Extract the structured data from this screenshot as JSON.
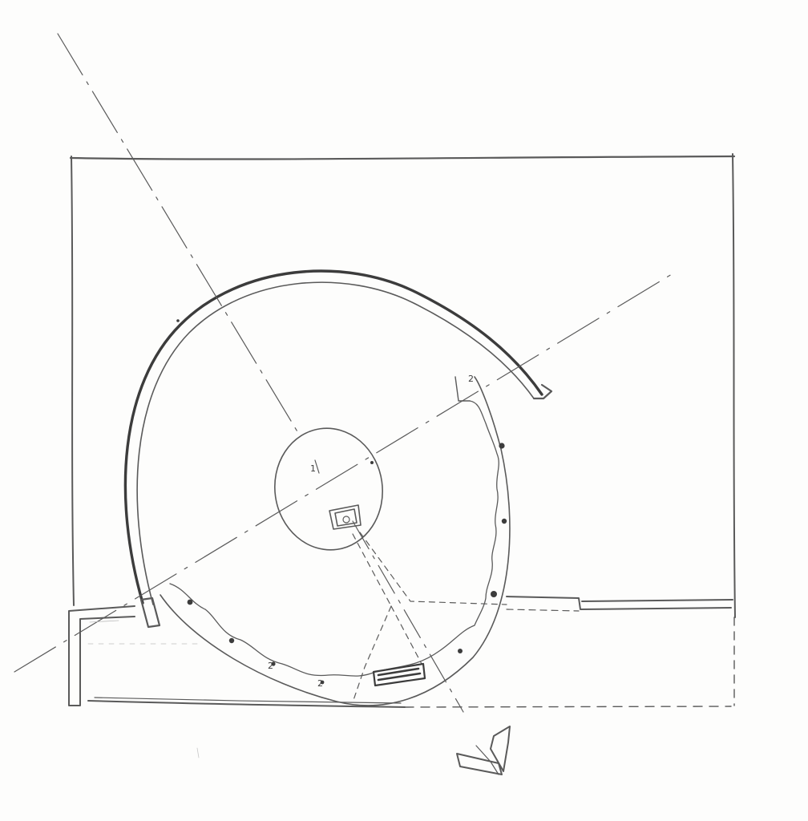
{
  "drawing": {
    "style": "pencil sketch",
    "ink_color": "#5a5a5a",
    "ink_dark": "#3c3c3c",
    "ink_light": "#8a8a8a",
    "paper_color": "#fdfdfc",
    "column_count": 10,
    "labels": [
      "2",
      "1",
      "2",
      "2"
    ]
  }
}
